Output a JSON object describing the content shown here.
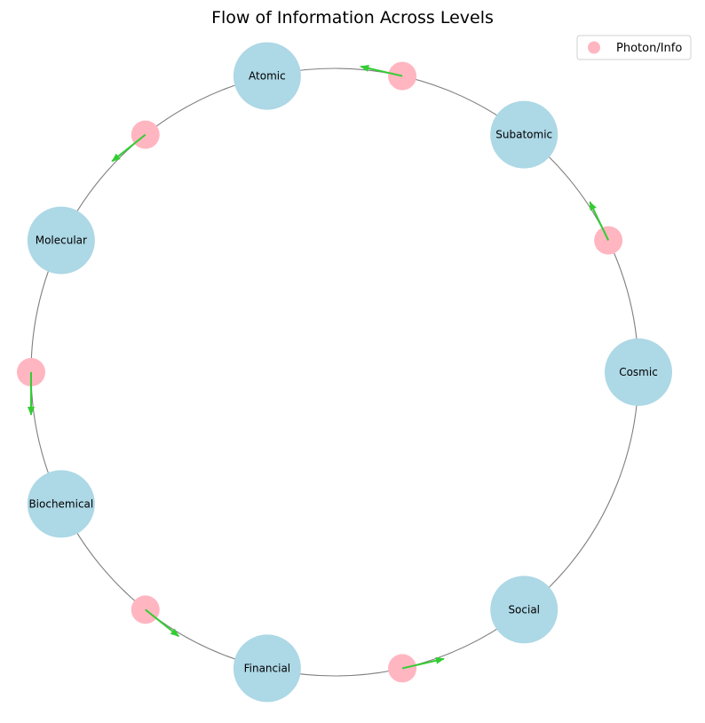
{
  "title": "Flow of Information Across Levels",
  "legend": {
    "label": "Photon/Info",
    "placement": "top-right"
  },
  "colors": {
    "node": "#add8e6",
    "photon": "#ffb6c1",
    "arrow": "#32cd32",
    "ring": "#808080"
  },
  "nodes": [
    {
      "id": "cosmic",
      "label": "Cosmic",
      "angle_deg": 0
    },
    {
      "id": "subatomic",
      "label": "Subatomic",
      "angle_deg": 51.43
    },
    {
      "id": "atomic",
      "label": "Atomic",
      "angle_deg": 102.86
    },
    {
      "id": "molecular",
      "label": "Molecular",
      "angle_deg": 154.29
    },
    {
      "id": "biochemical",
      "label": "Biochemical",
      "angle_deg": 205.71
    },
    {
      "id": "financial",
      "label": "Financial",
      "angle_deg": 257.14
    },
    {
      "id": "social",
      "label": "Social",
      "angle_deg": 308.57
    }
  ],
  "flows": [
    {
      "from": "cosmic",
      "to": "subatomic"
    },
    {
      "from": "subatomic",
      "to": "atomic"
    },
    {
      "from": "atomic",
      "to": "molecular"
    },
    {
      "from": "molecular",
      "to": "biochemical"
    },
    {
      "from": "biochemical",
      "to": "financial"
    },
    {
      "from": "financial",
      "to": "social"
    }
  ]
}
